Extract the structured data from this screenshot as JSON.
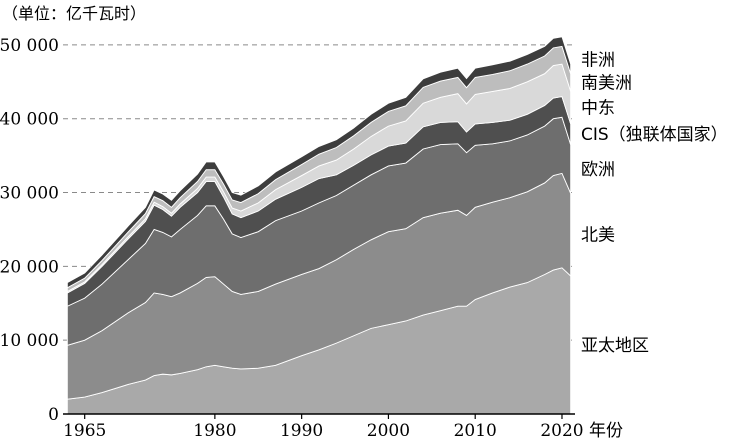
{
  "chart_data": {
    "type": "area",
    "stacked": true,
    "unit_label": "（单位：亿千瓦时）",
    "xlabel": "年份",
    "ylim": [
      0,
      55000
    ],
    "xlim": [
      1962.5,
      2021.5
    ],
    "y_ticks": [
      0,
      10000,
      20000,
      30000,
      40000,
      50000
    ],
    "y_tick_labels": [
      "0",
      "10 000",
      "20 000",
      "30 000",
      "40 000",
      "50 000"
    ],
    "x_ticks": [
      1965,
      1980,
      1990,
      2000,
      2010,
      2020
    ],
    "x_tick_labels": [
      "1965",
      "1980",
      "1990",
      "2000",
      "2010",
      "2020"
    ],
    "gridlines": [
      10000,
      20000,
      30000,
      40000,
      50000
    ],
    "grid": true,
    "x": [
      1963,
      1965,
      1967,
      1970,
      1972,
      1973,
      1974,
      1975,
      1976,
      1978,
      1979,
      1980,
      1981,
      1982,
      1983,
      1985,
      1987,
      1990,
      1992,
      1994,
      1996,
      1998,
      2000,
      2002,
      2004,
      2006,
      2008,
      2009,
      2010,
      2012,
      2014,
      2016,
      2018,
      2019,
      2020,
      2021
    ],
    "series": [
      {
        "name": "亚太地区",
        "color": "#a9a9a9",
        "values": [
          2000,
          2300,
          2900,
          4000,
          4600,
          5200,
          5400,
          5300,
          5500,
          6000,
          6400,
          6600,
          6400,
          6200,
          6100,
          6200,
          6600,
          7900,
          8700,
          9600,
          10600,
          11600,
          12100,
          12600,
          13400,
          14000,
          14600,
          14600,
          15500,
          16400,
          17200,
          17800,
          18900,
          19500,
          19800,
          18700
        ]
      },
      {
        "name": "北美",
        "color": "#8c8c8c",
        "values": [
          7300,
          7700,
          8400,
          9700,
          10500,
          11200,
          10800,
          10600,
          10900,
          11700,
          12100,
          12000,
          11200,
          10400,
          10100,
          10400,
          11000,
          11000,
          11000,
          11300,
          11700,
          12000,
          12600,
          12500,
          13200,
          13200,
          13000,
          12300,
          12500,
          12300,
          12100,
          12300,
          12400,
          12800,
          12800,
          11200
        ]
      },
      {
        "name": "欧洲",
        "color": "#6e6e6e",
        "values": [
          5300,
          5700,
          6300,
          7200,
          8000,
          8600,
          8400,
          8100,
          8600,
          9200,
          9700,
          9600,
          8800,
          7800,
          7700,
          8100,
          8600,
          8600,
          8900,
          8700,
          8700,
          8800,
          8900,
          8900,
          9300,
          9300,
          9000,
          8500,
          8400,
          7900,
          7700,
          7700,
          7700,
          7700,
          7600,
          6600
        ]
      },
      {
        "name": "CIS（独联体国家）",
        "color": "#4f4f4f",
        "values": [
          1800,
          2000,
          2400,
          2800,
          3000,
          3300,
          3100,
          2800,
          3000,
          3100,
          3300,
          3300,
          3000,
          2700,
          2700,
          2800,
          2900,
          3200,
          3300,
          2800,
          2700,
          2700,
          2700,
          2700,
          3000,
          3000,
          3000,
          2800,
          2900,
          2900,
          2800,
          2800,
          2800,
          2800,
          2800,
          2800
        ]
      },
      {
        "name": "中东",
        "color": "#d9d9d9",
        "values": [
          200,
          200,
          250,
          300,
          350,
          400,
          400,
          400,
          450,
          550,
          600,
          600,
          700,
          800,
          900,
          1100,
          1300,
          1600,
          1700,
          2000,
          2200,
          2500,
          2700,
          3000,
          3200,
          3400,
          3800,
          3800,
          4000,
          4200,
          4300,
          4400,
          4300,
          4400,
          4400,
          4400
        ]
      },
      {
        "name": "南美洲",
        "color": "#bdbdbd",
        "values": [
          500,
          500,
          550,
          650,
          700,
          750,
          800,
          800,
          850,
          950,
          1000,
          1000,
          1050,
          1100,
          1150,
          1250,
          1350,
          1500,
          1600,
          1700,
          1800,
          1900,
          2000,
          2050,
          2150,
          2200,
          2200,
          2200,
          2300,
          2300,
          2400,
          2400,
          2400,
          2400,
          2400,
          2400
        ]
      },
      {
        "name": "非洲",
        "color": "#3d3d3d",
        "values": [
          700,
          700,
          750,
          800,
          850,
          900,
          900,
          950,
          950,
          1000,
          1050,
          1050,
          1000,
          1000,
          1000,
          1050,
          1050,
          1050,
          1050,
          1050,
          1050,
          1100,
          1100,
          1150,
          1150,
          1200,
          1250,
          1250,
          1250,
          1300,
          1300,
          1300,
          1300,
          1300,
          1300,
          1300
        ]
      }
    ]
  }
}
